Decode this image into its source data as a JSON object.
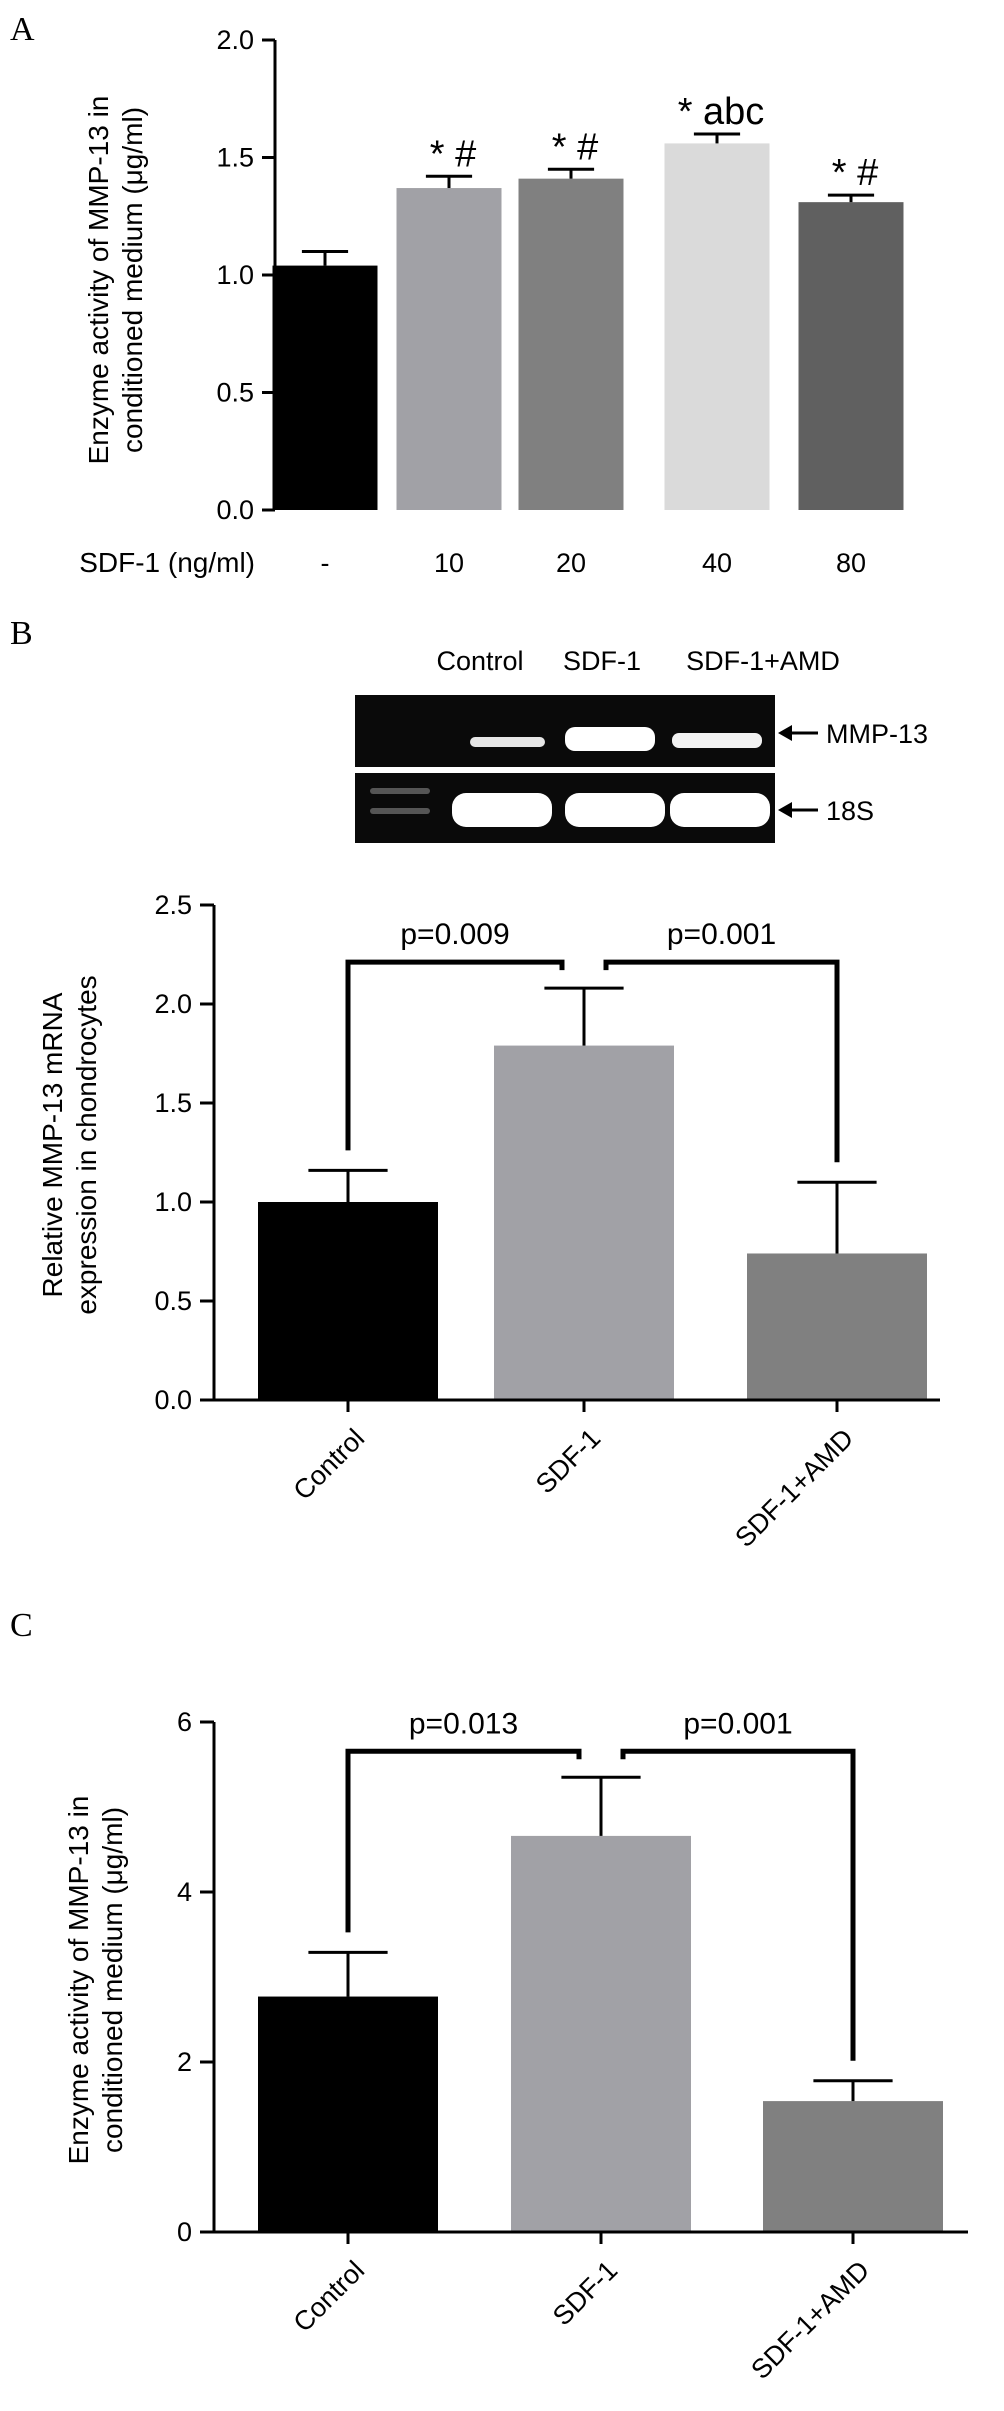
{
  "panels": {
    "a": "A",
    "b": "B",
    "c": "C"
  },
  "gel": {
    "lane_labels": [
      "Control",
      "SDF-1",
      "SDF-1+AMD"
    ],
    "band_labels": [
      "MMP-13",
      "18S"
    ]
  },
  "chart_data": [
    {
      "type": "bar",
      "panel": "A",
      "ylabel_lines": [
        "Enzyme activity of MMP-13 in",
        "conditioned medium (μg/ml)"
      ],
      "xlabel": "SDF-1 (ng/ml)",
      "categories": [
        "-",
        "10",
        "20",
        "40",
        "80"
      ],
      "values": [
        1.04,
        1.37,
        1.41,
        1.56,
        1.31
      ],
      "errors": [
        0.06,
        0.05,
        0.04,
        0.04,
        0.03
      ],
      "bar_colors": [
        "#000000",
        "#a1a1a6",
        "#808080",
        "#dadada",
        "#606060"
      ],
      "annotations": [
        "",
        "* #",
        "* #",
        "* abc",
        "* #"
      ],
      "ylim": [
        0,
        2.0
      ],
      "yticks": [
        "0.0",
        "0.5",
        "1.0",
        "1.5",
        "2.0"
      ],
      "grid": false
    },
    {
      "type": "bar",
      "panel": "B",
      "ylabel_lines": [
        "Relative MMP-13 mRNA",
        "expression in chondrocytes"
      ],
      "categories": [
        "Control",
        "SDF-1",
        "SDF-1+AMD"
      ],
      "values": [
        1.0,
        1.79,
        0.74
      ],
      "errors": [
        0.16,
        0.29,
        0.36
      ],
      "bar_colors": [
        "#000000",
        "#a1a1a6",
        "#808080"
      ],
      "comparisons": [
        {
          "label": "p=0.009",
          "pair": [
            0,
            1
          ]
        },
        {
          "label": "p=0.001",
          "pair": [
            1,
            2
          ]
        }
      ],
      "ylim": [
        0,
        2.5
      ],
      "yticks": [
        "0.0",
        "0.5",
        "1.0",
        "1.5",
        "2.0",
        "2.5"
      ],
      "grid": false
    },
    {
      "type": "bar",
      "panel": "C",
      "ylabel_lines": [
        "Enzyme activity of MMP-13 in",
        "conditioned medium (μg/ml)"
      ],
      "categories": [
        "Control",
        "SDF-1",
        "SDF-1+AMD"
      ],
      "values": [
        2.77,
        4.66,
        1.54
      ],
      "errors": [
        0.52,
        0.69,
        0.24
      ],
      "bar_colors": [
        "#000000",
        "#a1a1a6",
        "#808080"
      ],
      "comparisons": [
        {
          "label": "p=0.013",
          "pair": [
            0,
            1
          ]
        },
        {
          "label": "p=0.001",
          "pair": [
            1,
            2
          ]
        }
      ],
      "ylim": [
        0,
        6
      ],
      "yticks": [
        "0",
        "2",
        "4",
        "6"
      ],
      "grid": false
    }
  ]
}
